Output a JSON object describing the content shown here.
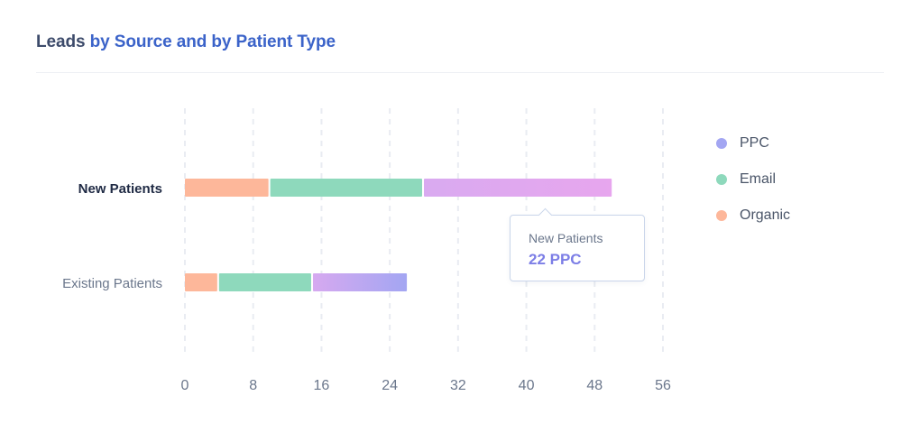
{
  "title": {
    "part1": "Leads",
    "part2": "by Source and by Patient Type"
  },
  "chart_data": {
    "type": "bar",
    "orientation": "horizontal",
    "stacked": true,
    "title": "Leads by Source and by Patient Type",
    "categories": [
      "New Patients",
      "Existing Patients"
    ],
    "series": [
      {
        "name": "Organic",
        "values": [
          10,
          4
        ],
        "color": "#fdb79a"
      },
      {
        "name": "Email",
        "values": [
          18,
          11
        ],
        "color": "#8ed9bc"
      },
      {
        "name": "PPC",
        "values": [
          22,
          11
        ],
        "color_start": "#d6a9f0",
        "color_end": "#a3a6f2"
      }
    ],
    "xlim": [
      0,
      56
    ],
    "xticks": [
      0,
      8,
      16,
      24,
      32,
      40,
      48,
      56
    ],
    "grid": true,
    "legend_position": "right",
    "highlighted_category": "New Patients"
  },
  "legend": [
    {
      "name": "PPC",
      "color": "#a3a6f2"
    },
    {
      "name": "Email",
      "color": "#8ed9bc"
    },
    {
      "name": "Organic",
      "color": "#fdb79a"
    }
  ],
  "tooltip": {
    "label": "New Patients",
    "value": "22 PPC"
  }
}
